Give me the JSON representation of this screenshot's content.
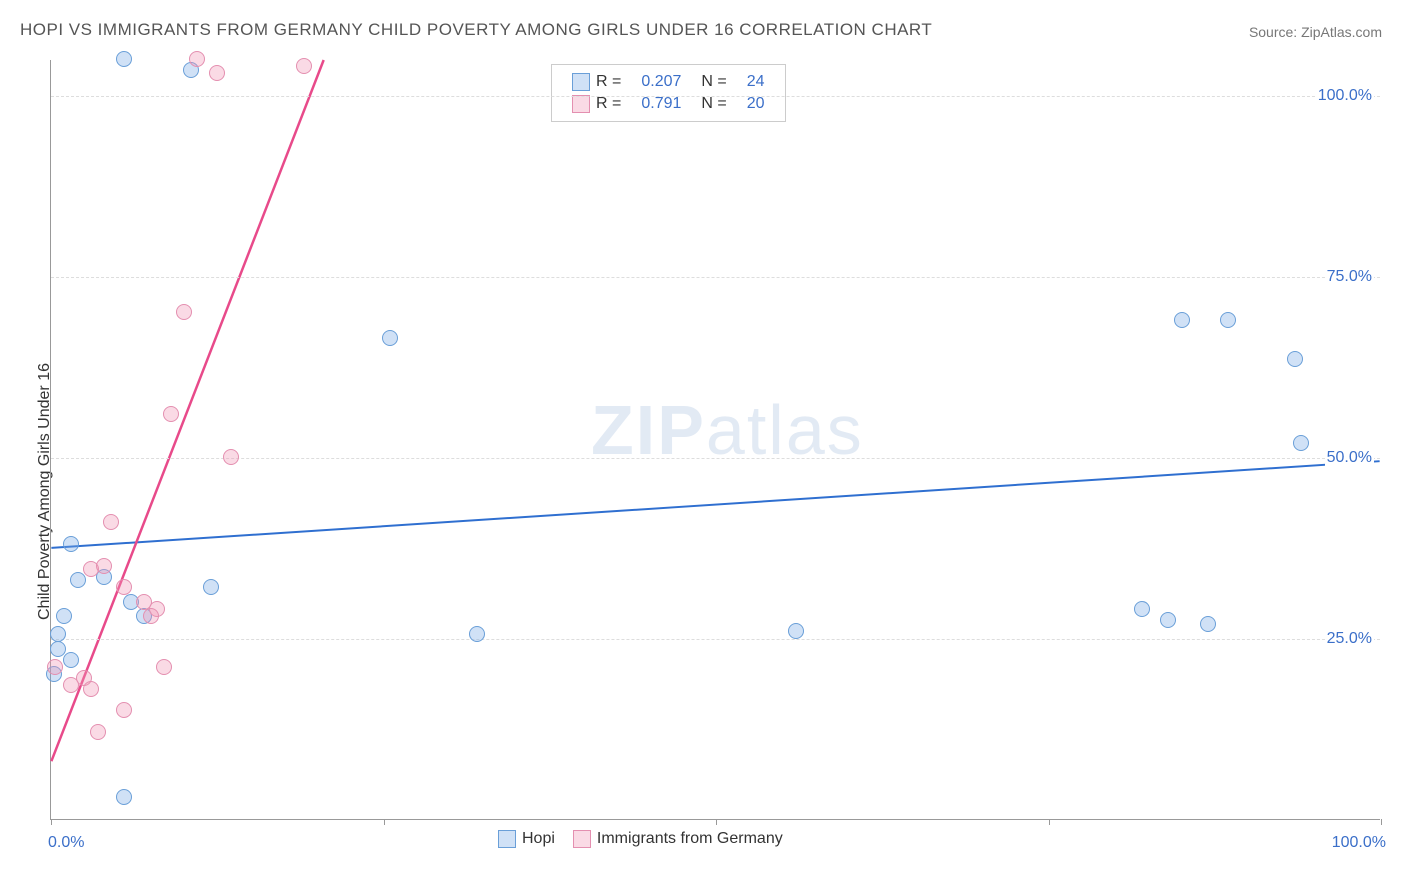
{
  "title": "HOPI VS IMMIGRANTS FROM GERMANY CHILD POVERTY AMONG GIRLS UNDER 16 CORRELATION CHART",
  "source_label": "Source: ",
  "source_name": "ZipAtlas.com",
  "ylabel": "Child Poverty Among Girls Under 16",
  "watermark": {
    "prefix": "ZIP",
    "suffix": "atlas"
  },
  "axes": {
    "xlim": [
      0,
      100
    ],
    "ylim": [
      0,
      105
    ],
    "xticks": [
      0,
      25,
      50,
      75,
      100
    ],
    "yticks": [
      25,
      50,
      75,
      100
    ],
    "ytick_labels": [
      "25.0%",
      "50.0%",
      "75.0%",
      "100.0%"
    ],
    "x_endpoint_labels": [
      "0.0%",
      "100.0%"
    ],
    "grid_color": "#dddddd",
    "axis_color": "#999999",
    "tick_label_color": "#3b6fc9"
  },
  "series": [
    {
      "key": "hopi",
      "label": "Hopi",
      "R": "0.207",
      "N": "24",
      "marker_fill": "rgba(120,170,230,0.35)",
      "marker_stroke": "#6a9fd8",
      "line_color": "#2f6fd0",
      "line_width": 2,
      "trend": {
        "x1": 0,
        "y1": 37.5,
        "x2": 100,
        "y2": 49.5
      },
      "points": [
        {
          "x": 5.5,
          "y": 105
        },
        {
          "x": 10.5,
          "y": 103.5
        },
        {
          "x": 25.5,
          "y": 66.5
        },
        {
          "x": 85,
          "y": 69
        },
        {
          "x": 88.5,
          "y": 69
        },
        {
          "x": 93.5,
          "y": 63.5
        },
        {
          "x": 94,
          "y": 52
        },
        {
          "x": 1.5,
          "y": 38
        },
        {
          "x": 2,
          "y": 33
        },
        {
          "x": 4,
          "y": 33.5
        },
        {
          "x": 12,
          "y": 32
        },
        {
          "x": 6,
          "y": 30
        },
        {
          "x": 1,
          "y": 28
        },
        {
          "x": 7,
          "y": 28
        },
        {
          "x": 82,
          "y": 29
        },
        {
          "x": 84,
          "y": 27.5
        },
        {
          "x": 87,
          "y": 27
        },
        {
          "x": 0.5,
          "y": 25.5
        },
        {
          "x": 32,
          "y": 25.5
        },
        {
          "x": 56,
          "y": 26
        },
        {
          "x": 0.5,
          "y": 23.5
        },
        {
          "x": 1.5,
          "y": 22
        },
        {
          "x": 0.2,
          "y": 20
        },
        {
          "x": 5.5,
          "y": 3
        }
      ]
    },
    {
      "key": "germany",
      "label": "Immigrants from Germany",
      "R": "0.791",
      "N": "20",
      "marker_fill": "rgba(240,150,180,0.35)",
      "marker_stroke": "#e48fb0",
      "line_color": "#e84a8a",
      "line_width": 2.5,
      "trend": {
        "x1": 0,
        "y1": 8,
        "x2": 20.5,
        "y2": 105
      },
      "points": [
        {
          "x": 11,
          "y": 105
        },
        {
          "x": 12.5,
          "y": 103
        },
        {
          "x": 19,
          "y": 104
        },
        {
          "x": 10,
          "y": 70
        },
        {
          "x": 9,
          "y": 56
        },
        {
          "x": 13.5,
          "y": 50
        },
        {
          "x": 4.5,
          "y": 41
        },
        {
          "x": 3,
          "y": 34.5
        },
        {
          "x": 4,
          "y": 35
        },
        {
          "x": 5.5,
          "y": 32
        },
        {
          "x": 7,
          "y": 30
        },
        {
          "x": 8,
          "y": 29
        },
        {
          "x": 7.5,
          "y": 28
        },
        {
          "x": 0.3,
          "y": 21
        },
        {
          "x": 8.5,
          "y": 21
        },
        {
          "x": 2.5,
          "y": 19.5
        },
        {
          "x": 1.5,
          "y": 18.5
        },
        {
          "x": 3,
          "y": 18
        },
        {
          "x": 5.5,
          "y": 15
        },
        {
          "x": 3.5,
          "y": 12
        }
      ]
    }
  ],
  "legend_top": {
    "R_label": "R =",
    "N_label": "N ="
  }
}
